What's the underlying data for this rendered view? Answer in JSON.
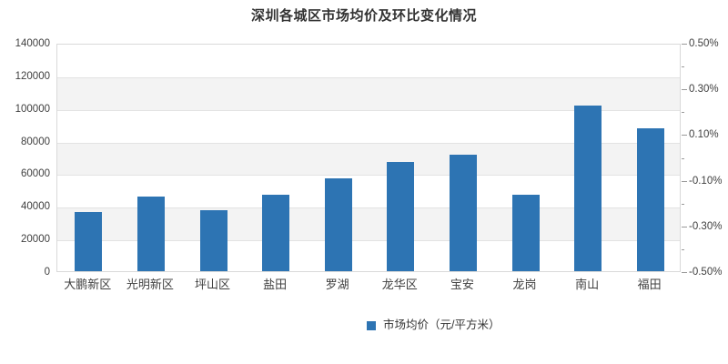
{
  "title": "深圳各城区市场均价及环比变化情况",
  "legend": {
    "label": "市场均价（元/平方米）"
  },
  "colors": {
    "bar": "#2d74b3",
    "grid": "#e3e3e3",
    "band": "#f3f3f3",
    "border": "#d9d9d9",
    "axis_text": "#404040",
    "title_text": "#333333"
  },
  "chart_data": {
    "type": "bar",
    "title": "深圳各城区市场均价及环比变化情况",
    "categories": [
      "大鹏新区",
      "光明新区",
      "坪山区",
      "盐田",
      "罗湖",
      "龙华区",
      "宝安",
      "龙岗",
      "南山",
      "福田"
    ],
    "series": [
      {
        "name": "市场均价（元/平方米）",
        "axis": "left",
        "color": "#2d74b3",
        "values": [
          36500,
          45500,
          37500,
          46800,
          57000,
          67000,
          71200,
          47000,
          101800,
          87800
        ]
      }
    ],
    "y_axis_left": {
      "min": 0,
      "max": 140000,
      "step": 20000,
      "tick_labels": [
        "0",
        "20000",
        "40000",
        "60000",
        "80000",
        "100000",
        "120000",
        "140000"
      ]
    },
    "y_axis_right": {
      "min": -0.5,
      "max": 0.5,
      "label_step": 0.2,
      "minor_tick_step": 0.1,
      "tick_labels": [
        "0.50%",
        "0.30%",
        "0.10%",
        "-0.10%",
        "-0.30%",
        "-0.50%"
      ]
    },
    "grid": true,
    "alternating_bands": true,
    "legend_position": "bottom"
  }
}
